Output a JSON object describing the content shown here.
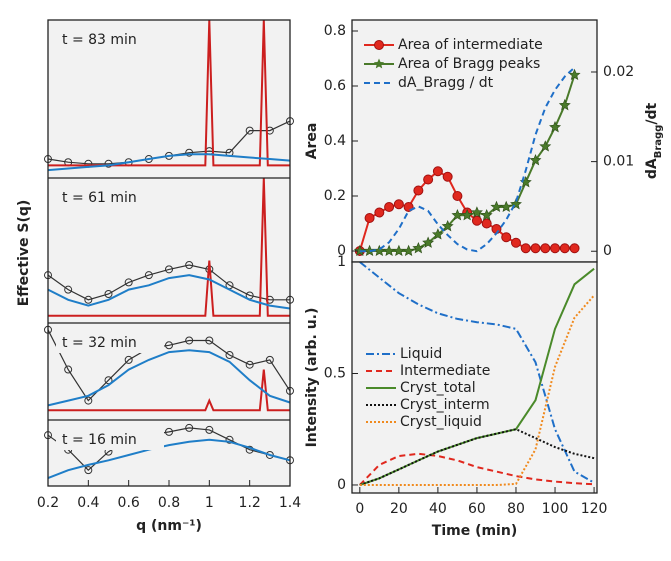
{
  "chart_data": [
    {
      "type": "line",
      "xlabel": "q (nm⁻¹)",
      "ylabel": "Effective S(q)",
      "xlim": [
        0.2,
        1.4
      ],
      "xticks": [
        0.2,
        0.4,
        0.6,
        0.8,
        1,
        1.2,
        1.4
      ],
      "panels": [
        {
          "annotation": "t = 83 min",
          "ylim": [
            0,
            1
          ],
          "series": [
            {
              "color": "#333333",
              "style": "solid",
              "marker": "circle",
              "x": [
                0.2,
                0.3,
                0.4,
                0.5,
                0.6,
                0.7,
                0.8,
                0.9,
                1.0,
                1.1,
                1.2,
                1.3,
                1.4
              ],
              "values": [
                0.12,
                0.1,
                0.09,
                0.09,
                0.1,
                0.12,
                0.14,
                0.16,
                0.17,
                0.16,
                0.3,
                0.3,
                0.36
              ]
            },
            {
              "color": "#cc1f1f",
              "style": "solid",
              "x": [
                0.2,
                0.98,
                1.0,
                1.02,
                1.25,
                1.27,
                1.29,
                1.4
              ],
              "values": [
                0.08,
                0.08,
                1,
                0.08,
                0.08,
                1,
                0.08,
                0.08
              ]
            },
            {
              "color": "#1f7ec8",
              "style": "solid",
              "x": [
                0.2,
                0.3,
                0.4,
                0.5,
                0.6,
                0.7,
                0.8,
                0.9,
                1.0,
                1.1,
                1.2,
                1.3,
                1.4
              ],
              "values": [
                0.05,
                0.06,
                0.07,
                0.08,
                0.1,
                0.12,
                0.14,
                0.15,
                0.15,
                0.14,
                0.13,
                0.12,
                0.11
              ]
            }
          ]
        },
        {
          "annotation": "t = 61 min",
          "ylim": [
            0,
            1
          ],
          "series": [
            {
              "color": "#333333",
              "style": "solid",
              "marker": "circle",
              "x": [
                0.2,
                0.3,
                0.4,
                0.5,
                0.6,
                0.7,
                0.8,
                0.9,
                1.0,
                1.1,
                1.2,
                1.3,
                1.4
              ],
              "values": [
                0.33,
                0.23,
                0.16,
                0.2,
                0.28,
                0.33,
                0.37,
                0.4,
                0.37,
                0.26,
                0.19,
                0.16,
                0.16
              ]
            },
            {
              "color": "#cc1f1f",
              "style": "solid",
              "x": [
                0.2,
                0.98,
                1.0,
                1.02,
                1.25,
                1.27,
                1.29,
                1.4
              ],
              "values": [
                0.05,
                0.05,
                0.43,
                0.05,
                0.05,
                1,
                0.05,
                0.05
              ]
            },
            {
              "color": "#1f7ec8",
              "style": "solid",
              "x": [
                0.2,
                0.3,
                0.4,
                0.5,
                0.6,
                0.7,
                0.8,
                0.9,
                1.0,
                1.1,
                1.2,
                1.3,
                1.4
              ],
              "values": [
                0.23,
                0.16,
                0.12,
                0.16,
                0.23,
                0.26,
                0.31,
                0.33,
                0.3,
                0.23,
                0.16,
                0.12,
                0.1
              ]
            }
          ]
        },
        {
          "annotation": "t = 32 min",
          "ylim": [
            0,
            1
          ],
          "series": [
            {
              "color": "#333333",
              "style": "solid",
              "marker": "circle",
              "x": [
                0.2,
                0.3,
                0.4,
                0.5,
                0.6,
                0.7,
                0.8,
                0.9,
                1.0,
                1.1,
                1.2,
                1.3,
                1.4
              ],
              "values": [
                0.93,
                0.52,
                0.2,
                0.41,
                0.62,
                0.74,
                0.77,
                0.82,
                0.82,
                0.67,
                0.57,
                0.62,
                0.3
              ]
            },
            {
              "color": "#cc1f1f",
              "style": "solid",
              "x": [
                0.2,
                0.98,
                1.0,
                1.02,
                1.25,
                1.27,
                1.29,
                1.4
              ],
              "values": [
                0.1,
                0.1,
                0.2,
                0.1,
                0.1,
                0.52,
                0.1,
                0.1
              ]
            },
            {
              "color": "#1f7ec8",
              "style": "solid",
              "x": [
                0.2,
                0.3,
                0.4,
                0.5,
                0.6,
                0.7,
                0.8,
                0.9,
                1.0,
                1.1,
                1.2,
                1.3,
                1.4
              ],
              "values": [
                0.15,
                0.2,
                0.25,
                0.36,
                0.52,
                0.62,
                0.7,
                0.72,
                0.7,
                0.6,
                0.41,
                0.25,
                0.18
              ]
            }
          ]
        },
        {
          "annotation": "t = 16 min",
          "ylim": [
            0,
            1
          ],
          "series": [
            {
              "color": "#333333",
              "style": "solid",
              "marker": "circle",
              "x": [
                0.2,
                0.3,
                0.4,
                0.5,
                0.6,
                0.7,
                0.8,
                0.9,
                1.0,
                1.1,
                1.2,
                1.3,
                1.4
              ],
              "values": [
                0.77,
                0.55,
                0.24,
                0.52,
                0.7,
                0.77,
                0.82,
                0.88,
                0.85,
                0.7,
                0.55,
                0.47,
                0.39
              ]
            },
            {
              "color": "#1f7ec8",
              "style": "solid",
              "x": [
                0.2,
                0.3,
                0.4,
                0.5,
                0.6,
                0.7,
                0.8,
                0.9,
                1.0,
                1.1,
                1.2,
                1.3,
                1.4
              ],
              "values": [
                0.12,
                0.24,
                0.32,
                0.39,
                0.47,
                0.55,
                0.62,
                0.67,
                0.7,
                0.67,
                0.58,
                0.47,
                0.39
              ]
            }
          ]
        }
      ]
    },
    {
      "type": "line",
      "ylabel": "Area",
      "y2label": {
        "text": "dA",
        "subscript": "Bragg",
        "suffix": "/dt"
      },
      "x": [
        0,
        5,
        10,
        15,
        20,
        25,
        30,
        35,
        40,
        45,
        50,
        55,
        60,
        65,
        70,
        75,
        80,
        85,
        90,
        95,
        100,
        105,
        110
      ],
      "xlim": [
        -4,
        121.5
      ],
      "ylim": [
        -0.04,
        0.84
      ],
      "yticks": [
        0,
        0.2,
        0.4,
        0.6,
        0.8
      ],
      "y2lim": [
        -0.0012,
        0.0258
      ],
      "y2ticks": [
        0,
        0.01,
        0.02
      ],
      "series": [
        {
          "name": "Area of intermediate",
          "color": "#e0281e",
          "style": "solid",
          "marker": "circle",
          "values": [
            0,
            0.12,
            0.14,
            0.16,
            0.17,
            0.16,
            0.22,
            0.26,
            0.29,
            0.27,
            0.2,
            0.14,
            0.11,
            0.1,
            0.08,
            0.05,
            0.03,
            0.01,
            0.01,
            0.01,
            0.01,
            0.01,
            0.01
          ]
        },
        {
          "name": "Area of Bragg peaks",
          "color": "#4a7a2a",
          "style": "solid",
          "marker": "star",
          "values": [
            0,
            0,
            0,
            0,
            0,
            0,
            0.01,
            0.03,
            0.06,
            0.09,
            0.13,
            0.13,
            0.14,
            0.13,
            0.16,
            0.16,
            0.17,
            0.25,
            0.33,
            0.38,
            0.45,
            0.53,
            0.64
          ]
        },
        {
          "name": "dA_Bragg / dt",
          "color": "#1f6fc8",
          "style": "dashed",
          "axis": "y2",
          "values": [
            0,
            0,
            0.0002,
            0.001,
            0.0025,
            0.0045,
            0.005,
            0.0045,
            0.003,
            0.0018,
            0.0008,
            0.0002,
            0,
            0.0008,
            0.002,
            0.0035,
            0.0055,
            0.009,
            0.013,
            0.016,
            0.018,
            0.0195,
            0.0205
          ]
        }
      ]
    },
    {
      "type": "line",
      "xlabel": "Time (min)",
      "ylabel": "Intensity (arb. u.)",
      "x": [
        0,
        10,
        20,
        30,
        40,
        50,
        60,
        70,
        80,
        90,
        100,
        110,
        120
      ],
      "xlim": [
        -4,
        121.5
      ],
      "xticks": [
        0,
        20,
        40,
        60,
        80,
        100,
        120
      ],
      "ylim": [
        -0.036,
        1
      ],
      "yticks": [
        0,
        0.5,
        1
      ],
      "series": [
        {
          "name": "Liquid",
          "color": "#1f6fc8",
          "style": "dashdot",
          "values": [
            1,
            0.93,
            0.86,
            0.81,
            0.77,
            0.745,
            0.73,
            0.72,
            0.7,
            0.55,
            0.25,
            0.06,
            0.01
          ]
        },
        {
          "name": "Intermediate",
          "color": "#e0281e",
          "style": "dashed",
          "values": [
            0,
            0.09,
            0.13,
            0.14,
            0.13,
            0.11,
            0.08,
            0.06,
            0.04,
            0.025,
            0.015,
            0.008,
            0.003
          ]
        },
        {
          "name": "Cryst_total",
          "color": "#4a8a2a",
          "style": "solid",
          "values": [
            0,
            0.03,
            0.07,
            0.11,
            0.15,
            0.18,
            0.21,
            0.23,
            0.25,
            0.38,
            0.7,
            0.9,
            0.97
          ]
        },
        {
          "name": "Cryst_interm",
          "color": "#111111",
          "style": "dotted",
          "values": [
            0,
            0.03,
            0.07,
            0.11,
            0.15,
            0.18,
            0.21,
            0.23,
            0.25,
            0.21,
            0.17,
            0.14,
            0.12
          ]
        },
        {
          "name": "Cryst_liquid",
          "color": "#f08a1e",
          "style": "dotted",
          "values": [
            0,
            0,
            0,
            0,
            0,
            0,
            0,
            0,
            0.005,
            0.16,
            0.53,
            0.75,
            0.85
          ]
        }
      ]
    }
  ]
}
